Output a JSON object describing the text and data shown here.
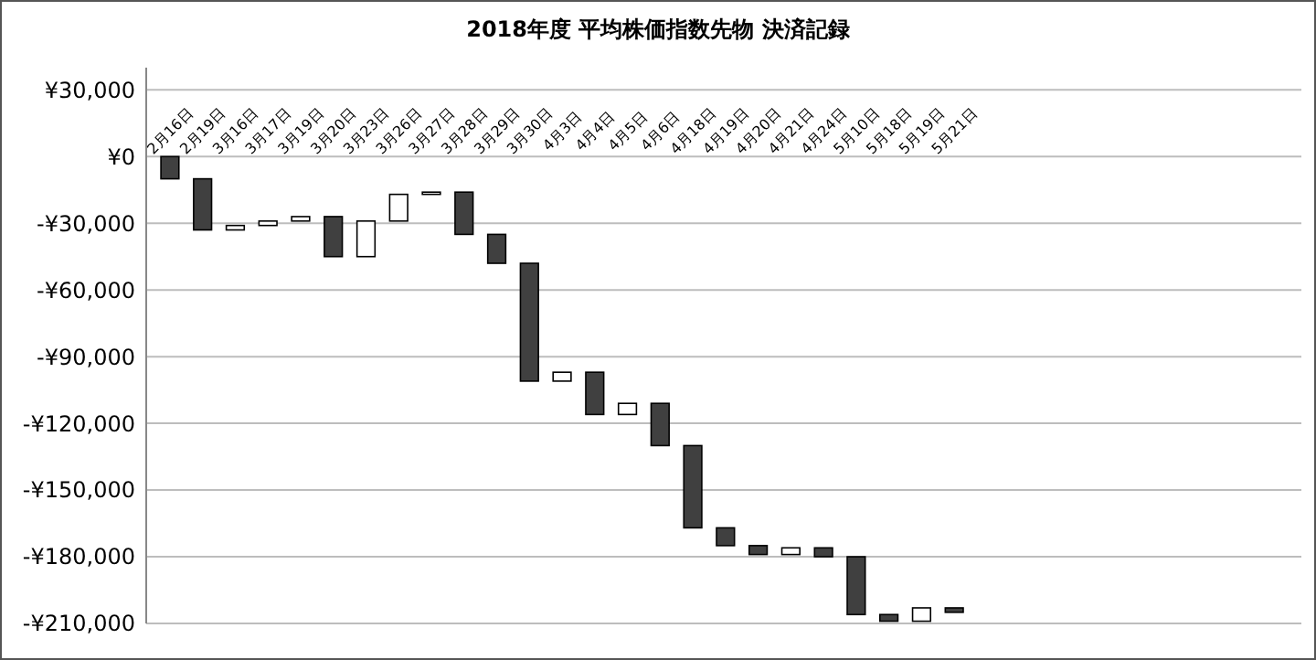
{
  "chart_data": {
    "type": "bar",
    "title": "2018年度 平均株価指数先物 決済記録",
    "categories": [
      "2月16日",
      "2月19日",
      "3月16日",
      "3月17日",
      "3月19日",
      "3月20日",
      "3月23日",
      "3月26日",
      "3月27日",
      "3月28日",
      "3月29日",
      "3月30日",
      "4月3日",
      "4月4日",
      "4月5日",
      "4月6日",
      "4月18日",
      "4月19日",
      "4月20日",
      "4月21日",
      "4月24日",
      "5月10日",
      "5月18日",
      "5月19日",
      "5月21日"
    ],
    "base": [
      0,
      -10000,
      -33000,
      -31000,
      -29000,
      -27000,
      -45000,
      -29000,
      -17000,
      -16000,
      -35000,
      -48000,
      -101000,
      -97000,
      -116000,
      -111000,
      -130000,
      -167000,
      -175000,
      -179000,
      -176000,
      -180000,
      -206000,
      -209000,
      -203000
    ],
    "values": [
      -10000,
      -23000,
      2000,
      2000,
      2000,
      -18000,
      16000,
      12000,
      1000,
      -19000,
      -13000,
      -53000,
      4000,
      -19000,
      5000,
      -19000,
      -37000,
      -8000,
      -4000,
      3000,
      -4000,
      -26000,
      -3000,
      6000,
      -2000
    ],
    "colors": [
      "#404040",
      "#404040",
      "#ffffff",
      "#ffffff",
      "#ffffff",
      "#404040",
      "#ffffff",
      "#ffffff",
      "#ffffff",
      "#404040",
      "#404040",
      "#404040",
      "#ffffff",
      "#404040",
      "#ffffff",
      "#404040",
      "#404040",
      "#404040",
      "#404040",
      "#ffffff",
      "#404040",
      "#404040",
      "#404040",
      "#ffffff",
      "#404040"
    ],
    "ylim": [
      -210000,
      40000
    ],
    "yticks": [
      {
        "value": 30000,
        "label": "¥30,000"
      },
      {
        "value": 0,
        "label": "¥0"
      },
      {
        "value": -30000,
        "label": "-¥30,000"
      },
      {
        "value": -60000,
        "label": "-¥60,000"
      },
      {
        "value": -90000,
        "label": "-¥90,000"
      },
      {
        "value": -120000,
        "label": "-¥120,000"
      },
      {
        "value": -150000,
        "label": "-¥150,000"
      },
      {
        "value": -180000,
        "label": "-¥180,000"
      },
      {
        "value": -210000,
        "label": "-¥210,000"
      }
    ],
    "grid": "y"
  }
}
